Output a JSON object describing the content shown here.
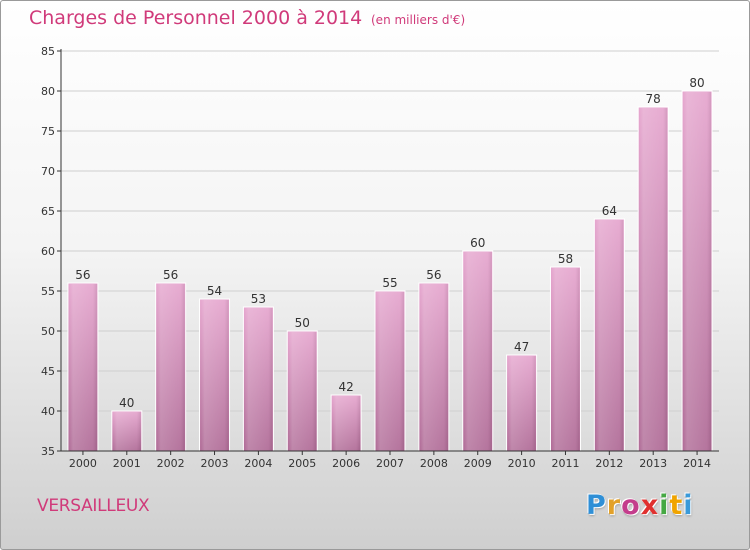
{
  "header": {
    "title": "Charges de Personnel 2000 à 2014",
    "subtitle": "(en milliers d'€)"
  },
  "footer": {
    "name": "VERSAILLEUX",
    "logo_letters": [
      "P",
      "r",
      "o",
      "x",
      "i",
      "t",
      "i"
    ],
    "logo_colors": [
      "#2f8fd6",
      "#e2a12a",
      "#c43d8c",
      "#e0312f",
      "#45a843",
      "#f0a400",
      "#3a9ad9"
    ]
  },
  "colors": {
    "accent": "#d03a7a",
    "bar_top": "#e6a7cf",
    "bar_bottom": "#b06c97",
    "grid": "#cfcfcf",
    "axis": "#333333"
  },
  "chart_data": {
    "type": "bar",
    "categories": [
      "2000",
      "2001",
      "2002",
      "2003",
      "2004",
      "2005",
      "2006",
      "2007",
      "2008",
      "2009",
      "2010",
      "2011",
      "2012",
      "2013",
      "2014"
    ],
    "values": [
      56,
      40,
      56,
      54,
      53,
      50,
      42,
      55,
      56,
      60,
      47,
      58,
      64,
      78,
      80
    ],
    "y_ticks": [
      35,
      40,
      45,
      50,
      55,
      60,
      65,
      70,
      75,
      80,
      85
    ],
    "ylim": [
      35,
      85
    ],
    "grid": true
  }
}
